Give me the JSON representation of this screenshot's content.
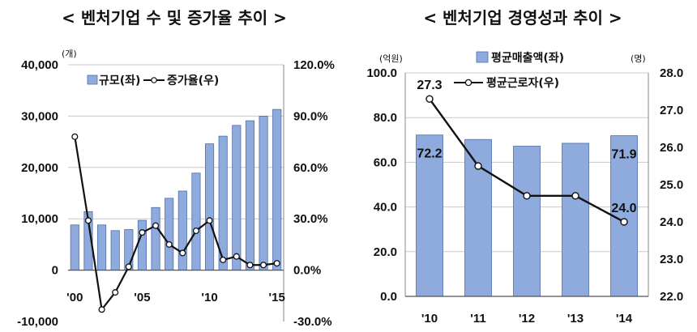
{
  "titles": {
    "left": "< 벤처기업 수 및 증가율 추이 >",
    "right": "< 벤처기업 경영성과 추이 >"
  },
  "colors": {
    "bar": "#8faadc",
    "bar_stroke": "#4f6fa8",
    "line": "#111111",
    "grid": "#c8c8c8"
  },
  "chart_data": [
    {
      "type": "bar",
      "combo": "bar+line",
      "title": "< 벤처기업 수 및 증가율 추이 >",
      "x": [
        2000,
        2001,
        2002,
        2003,
        2004,
        2005,
        2006,
        2007,
        2008,
        2009,
        2010,
        2011,
        2012,
        2013,
        2014,
        2015
      ],
      "x_tick_labels": [
        "'00",
        "'05",
        "'10",
        "'15"
      ],
      "series": [
        {
          "name": "규모(좌)",
          "type": "bar",
          "axis": "left",
          "values": [
            8800,
            11400,
            8800,
            7700,
            7900,
            9700,
            12200,
            14000,
            15400,
            18900,
            24600,
            26100,
            28200,
            29100,
            30000,
            31300
          ]
        },
        {
          "name": "증가율(우)",
          "type": "line",
          "axis": "right",
          "values": [
            78.0,
            29.0,
            -23.0,
            -13.0,
            2.0,
            22.0,
            26.0,
            15.0,
            10.0,
            23.0,
            29.0,
            6.0,
            8.0,
            3.0,
            3.0,
            4.0
          ]
        }
      ],
      "y_left": {
        "unit": "(개)",
        "ylim": [
          -10000,
          40000
        ],
        "ticks": [
          "-10,000",
          "0",
          "10,000",
          "20,000",
          "30,000",
          "40,000"
        ]
      },
      "y_right": {
        "ylim": [
          -30,
          120
        ],
        "ticks": [
          "-30.0%",
          "0.0%",
          "30.0%",
          "60.0%",
          "90.0%",
          "120.0%"
        ]
      },
      "grid": true,
      "legend": "top"
    },
    {
      "type": "bar",
      "combo": "bar+line",
      "title": "< 벤처기업 경영성과 추이 >",
      "categories": [
        "'10",
        "'11",
        "'12",
        "'13",
        "'14"
      ],
      "series": [
        {
          "name": "평균매출액(좌)",
          "type": "bar",
          "axis": "left",
          "values": [
            72.2,
            70.2,
            67.2,
            68.5,
            71.9
          ],
          "data_labels": {
            "0": "72.2",
            "4": "71.9"
          }
        },
        {
          "name": "평균근로자(우)",
          "type": "line",
          "axis": "right",
          "values": [
            27.3,
            25.5,
            24.7,
            24.7,
            24.0
          ],
          "data_labels": {
            "0": "27.3",
            "4": "24.0"
          }
        }
      ],
      "y_left": {
        "unit": "(억원)",
        "ylim": [
          0,
          100
        ],
        "ticks": [
          "0.0",
          "20.0",
          "40.0",
          "60.0",
          "80.0",
          "100.0"
        ]
      },
      "y_right": {
        "unit": "(명)",
        "ylim": [
          22,
          28
        ],
        "ticks": [
          "22.0",
          "23.0",
          "24.0",
          "25.0",
          "26.0",
          "27.0",
          "28.0"
        ]
      },
      "grid": true,
      "legend": "top"
    }
  ]
}
